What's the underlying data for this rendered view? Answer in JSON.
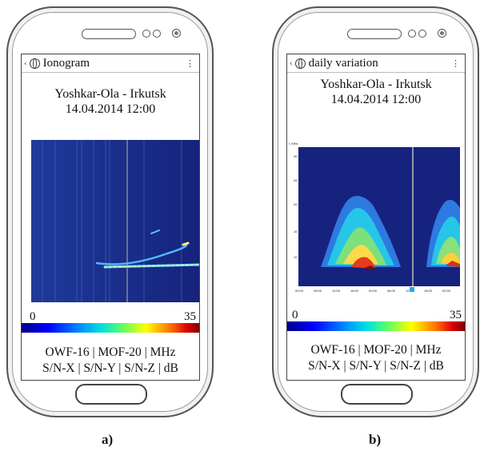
{
  "phone_a": {
    "title": "Ionogram",
    "route": "Yoshkar-Ola - Irkutsk",
    "datetime": "14.04.2014  12:00",
    "scale_min": "0",
    "scale_max": "35",
    "line1": "OWF-16 | MOF-20 | MHz",
    "line2": "S/N-X | S/N-Y | S/N-Z | dB",
    "caption": "a)"
  },
  "phone_b": {
    "title": "daily variation",
    "route": "Yoshkar-Ola - Irkutsk",
    "datetime": "14.04.2014  12:00",
    "scale_min": "0",
    "scale_max": "35",
    "line1": "OWF-16 | MOF-20 | MHz",
    "line2": "S/N-X | S/N-Y | S/N-Z | dB",
    "caption": "b)",
    "y_unit": "f, MHz",
    "y_ticks": [
      "30",
      "25",
      "20",
      "15",
      "10"
    ],
    "x_ticks": [
      "00:00",
      "06:00",
      "12:00",
      "18:00",
      "00:00",
      "06:00",
      "12:00",
      "18:00",
      "00:00"
    ]
  },
  "icons": {
    "back": "chevron-left-icon",
    "globe": "globe-icon",
    "menu": "more-vertical-icon"
  },
  "colors": {
    "plot_bg": "#1a2c8c",
    "frame": "#555555"
  }
}
